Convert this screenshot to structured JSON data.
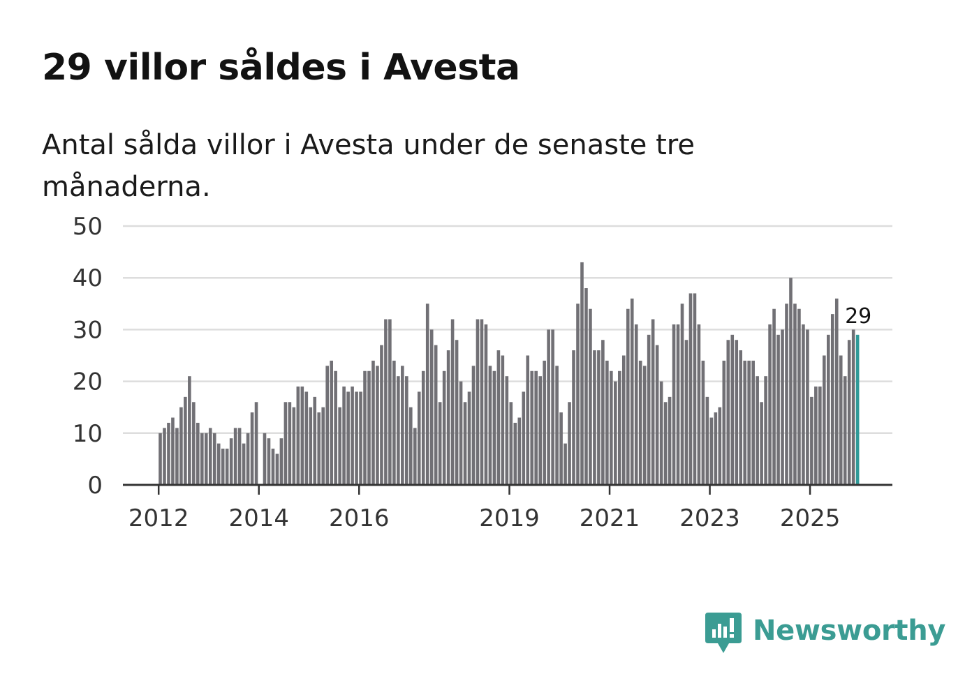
{
  "title": "29 villor såldes i Avesta",
  "subtitle": "Antal sålda villor i Avesta under de senaste tre månaderna.",
  "colors": {
    "bar": "#717075",
    "highlight": "#2f9a98",
    "grid": "#dddddd",
    "axis": "#333333",
    "brand": "#3b9c93"
  },
  "brand": {
    "name": "Newsworthy",
    "icon": "newsworthy-logo-icon"
  },
  "chart_data": {
    "type": "bar",
    "title": "29 villor såldes i Avesta",
    "subtitle": "Antal sålda villor i Avesta under de senaste tre månaderna.",
    "xlabel": "",
    "ylabel": "",
    "ylim": [
      0,
      50
    ],
    "yticks": [
      "0",
      "10",
      "20",
      "30",
      "40",
      "50"
    ],
    "grid": true,
    "start_year": 2012,
    "x_tick_labels": [
      "2012",
      "2014",
      "2016",
      "2019",
      "2021",
      "2023",
      "2025"
    ],
    "frequency": "monthly",
    "highlight_last": true,
    "last_value_label": "29",
    "values": [
      10,
      11,
      12,
      13,
      11,
      15,
      17,
      21,
      16,
      12,
      10,
      10,
      11,
      10,
      8,
      7,
      7,
      9,
      11,
      11,
      8,
      10,
      14,
      16,
      0,
      10,
      9,
      7,
      6,
      9,
      16,
      16,
      15,
      19,
      19,
      18,
      15,
      17,
      14,
      15,
      23,
      24,
      22,
      15,
      19,
      18,
      19,
      18,
      18,
      22,
      22,
      24,
      23,
      27,
      32,
      32,
      24,
      21,
      23,
      21,
      15,
      11,
      18,
      22,
      35,
      30,
      27,
      16,
      22,
      26,
      32,
      28,
      20,
      16,
      18,
      23,
      32,
      32,
      31,
      23,
      22,
      26,
      25,
      21,
      16,
      12,
      13,
      18,
      25,
      22,
      22,
      21,
      24,
      30,
      30,
      23,
      14,
      8,
      16,
      26,
      35,
      43,
      38,
      34,
      26,
      26,
      28,
      24,
      22,
      20,
      22,
      25,
      34,
      36,
      31,
      24,
      23,
      29,
      32,
      27,
      20,
      16,
      17,
      31,
      31,
      35,
      28,
      37,
      37,
      31,
      24,
      17,
      13,
      14,
      15,
      24,
      28,
      29,
      28,
      26,
      24,
      24,
      24,
      21,
      16,
      21,
      31,
      34,
      29,
      30,
      35,
      40,
      35,
      34,
      31,
      30,
      17,
      19,
      19,
      25,
      29,
      33,
      36,
      25,
      21,
      28,
      30,
      29
    ]
  }
}
